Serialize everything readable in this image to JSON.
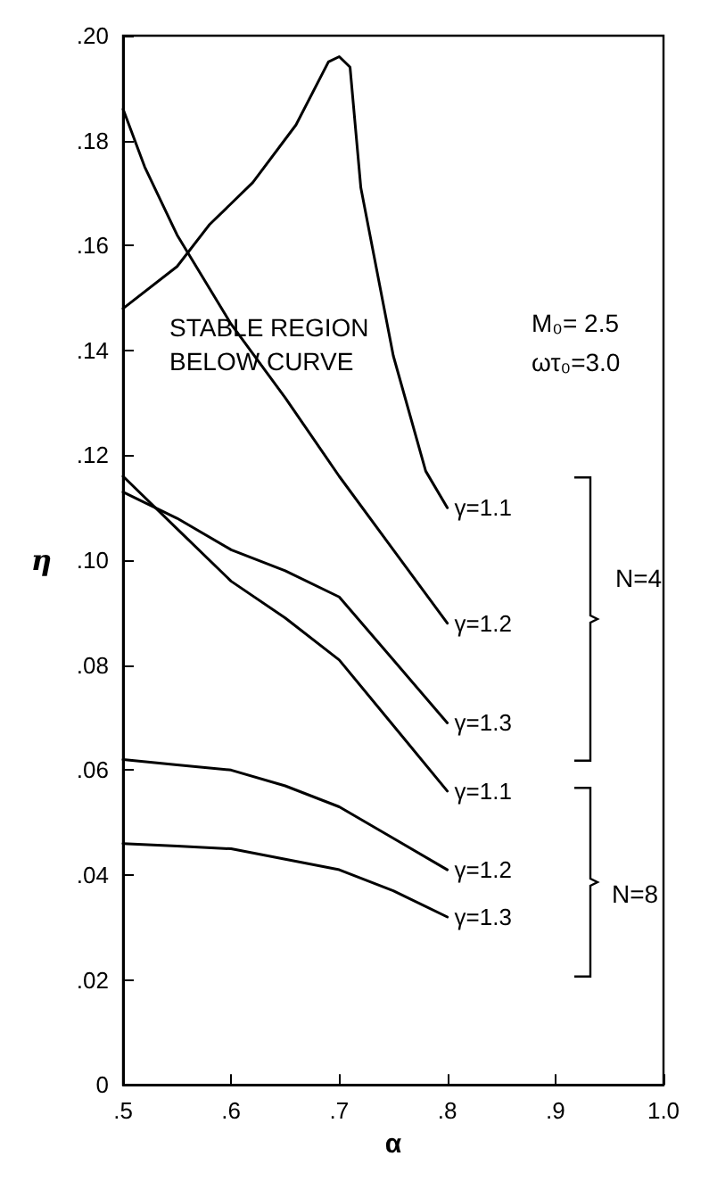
{
  "chart_data": {
    "type": "line",
    "xlabel": "α",
    "ylabel": "η",
    "xlim": [
      0.5,
      1.0
    ],
    "xticks": [
      {
        "value": 0.5,
        "label": ".5"
      },
      {
        "value": 0.6,
        "label": ".6"
      },
      {
        "value": 0.7,
        "label": ".7"
      },
      {
        "value": 0.8,
        "label": ".8"
      },
      {
        "value": 0.9,
        "label": ".9"
      },
      {
        "value": 1.0,
        "label": "1.0"
      }
    ],
    "ylim": [
      0,
      0.2
    ],
    "yticks": [
      0,
      {
        "value": 0.02,
        "label": ".02"
      },
      {
        "value": 0.04,
        "label": ".04"
      },
      {
        "value": 0.06,
        "label": ".06"
      },
      {
        "value": 0.08,
        "label": ".08"
      },
      {
        "value": 0.1,
        "label": ".10"
      },
      {
        "value": 0.12,
        "label": ".12"
      },
      {
        "value": 0.14,
        "label": ".14"
      },
      {
        "value": 0.16,
        "label": ".16"
      },
      {
        "value": 0.18,
        "label": ".18"
      },
      {
        "value": 0.2,
        "label": ".20"
      }
    ],
    "grid": false,
    "legend": false,
    "marker": "none",
    "line_style": "solid",
    "series": [
      {
        "name": "γ=1.1",
        "color": "#000000",
        "x": [
          0.5,
          0.55,
          0.58,
          0.62,
          0.66,
          0.69,
          0.7,
          0.71,
          0.72,
          0.75,
          0.78,
          0.8
        ],
        "values": [
          0.148,
          0.156,
          0.164,
          0.172,
          0.183,
          0.195,
          0.196,
          0.194,
          0.171,
          0.139,
          0.117,
          0.11
        ]
      },
      {
        "name": "γ=1.2",
        "color": "#000000",
        "x": [
          0.5,
          0.52,
          0.55,
          0.6,
          0.65,
          0.7,
          0.75,
          0.8
        ],
        "values": [
          0.186,
          0.175,
          0.162,
          0.145,
          0.131,
          0.116,
          0.102,
          0.088
        ]
      },
      {
        "name": "γ=1.3",
        "color": "#000000",
        "x": [
          0.5,
          0.55,
          0.6,
          0.65,
          0.7,
          0.75,
          0.8
        ],
        "values": [
          0.113,
          0.108,
          0.102,
          0.098,
          0.093,
          0.081,
          0.069
        ]
      },
      {
        "name": "γ=1.1",
        "color": "#000000",
        "x": [
          0.5,
          0.55,
          0.6,
          0.65,
          0.7,
          0.76,
          0.8
        ],
        "values": [
          0.116,
          0.106,
          0.096,
          0.089,
          0.081,
          0.066,
          0.056
        ]
      },
      {
        "name": "γ=1.2",
        "color": "#000000",
        "x": [
          0.5,
          0.55,
          0.6,
          0.65,
          0.7,
          0.75,
          0.8
        ],
        "values": [
          0.062,
          0.061,
          0.06,
          0.057,
          0.053,
          0.047,
          0.041
        ]
      },
      {
        "name": "γ=1.3",
        "color": "#000000",
        "x": [
          0.5,
          0.55,
          0.6,
          0.65,
          0.7,
          0.75,
          0.8
        ],
        "values": [
          0.046,
          0.0455,
          0.045,
          0.043,
          0.041,
          0.037,
          0.032
        ]
      }
    ],
    "annotations": [
      "STABLE REGION BELOW CURVE",
      "M₀= 2.5",
      "ωτ₀=3.0",
      "N=4",
      "N=8"
    ]
  }
}
